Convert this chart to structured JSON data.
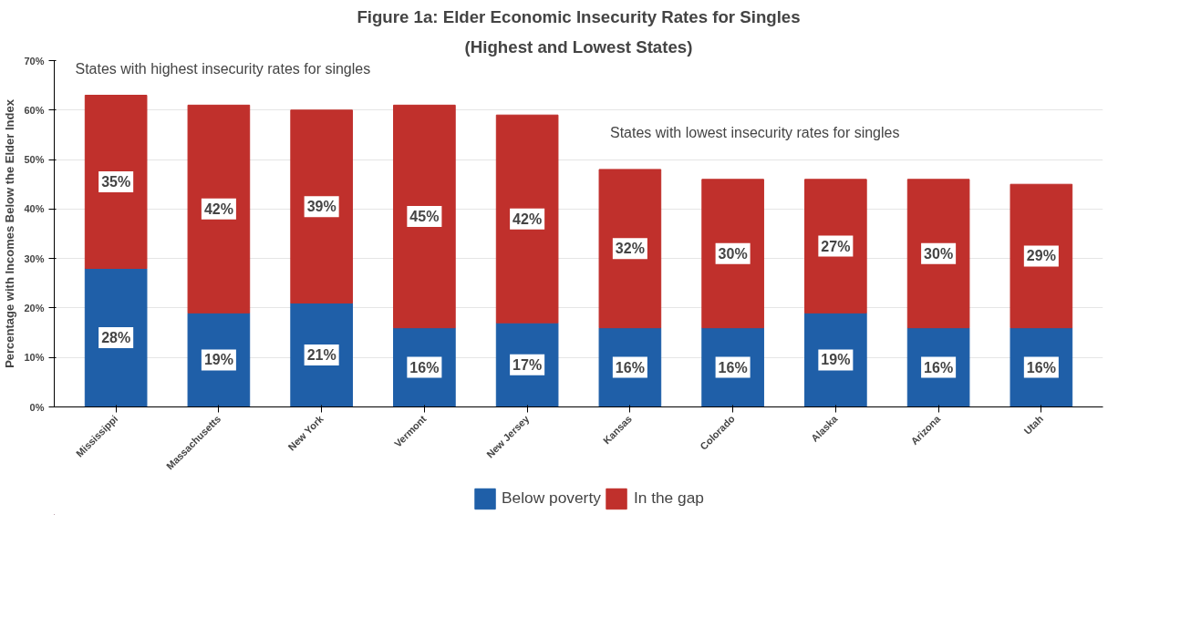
{
  "chart_data": {
    "type": "bar",
    "stacked": true,
    "title": "Figure 1a: Elder Economic Insecurity Rates for Singles",
    "subtitle": "(Highest and Lowest States)",
    "ylabel": "Percentage with Incomes Below the Elder Index",
    "categories": [
      "Mississippi",
      "Massachusetts",
      "New York",
      "Vermont",
      "New Jersey",
      "Kansas",
      "Colorado",
      "Alaska",
      "Arizona",
      "Utah"
    ],
    "series": [
      {
        "name": "Below poverty",
        "color": "#1f5fa8",
        "values": [
          28,
          19,
          21,
          16,
          17,
          16,
          16,
          19,
          16,
          16
        ],
        "value_labels": [
          "28%",
          "19%",
          "21%",
          "16%",
          "17%",
          "16%",
          "16%",
          "19%",
          "16%",
          "16%"
        ]
      },
      {
        "name": "In the gap",
        "color": "#c0302c",
        "values": [
          35,
          42,
          39,
          45,
          42,
          32,
          30,
          27,
          30,
          29
        ],
        "value_labels": [
          "35%",
          "42%",
          "39%",
          "45%",
          "42%",
          "32%",
          "30%",
          "27%",
          "30%",
          "29%"
        ]
      }
    ],
    "ylim": [
      0,
      70
    ],
    "yticks": [
      {
        "value": 0,
        "label": "0%"
      },
      {
        "value": 10,
        "label": "10%"
      },
      {
        "value": 20,
        "label": "20%"
      },
      {
        "value": 30,
        "label": "30%"
      },
      {
        "value": 40,
        "label": "40%"
      },
      {
        "value": 50,
        "label": "50%"
      },
      {
        "value": 60,
        "label": "60%"
      },
      {
        "value": 70,
        "label": "70%"
      }
    ],
    "grid": "y",
    "legend": "bottom",
    "annotations": [
      "States with highest insecurity rates for singles",
      "States with lowest insecurity rates for singles"
    ]
  }
}
